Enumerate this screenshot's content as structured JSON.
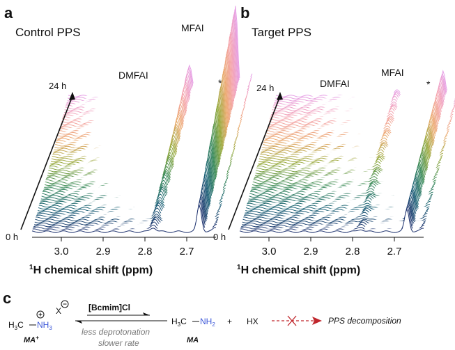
{
  "panel_a": {
    "letter": "a",
    "title": "Control PPS",
    "peak_dmfai": "DMFAI",
    "peak_mfai": "MFAI",
    "peak_star": "*",
    "time_top": "24 h",
    "time_bottom": "0 h"
  },
  "panel_b": {
    "letter": "b",
    "title": "Target PPS",
    "peak_dmfai": "DMFAI",
    "peak_mfai": "MFAI",
    "peak_star": "*",
    "time_top": "24 h",
    "time_bottom": "0 h"
  },
  "axis": {
    "title_sup": "1",
    "title_rest": "H chemical shift (ppm)"
  },
  "chart_data": [
    {
      "type": "line",
      "title": "Control PPS",
      "xlabel": "1H chemical shift (ppm)",
      "x_ticks": [
        "3.0",
        "2.9",
        "2.8",
        "2.7"
      ],
      "xlim": [
        3.07,
        2.63
      ],
      "stack_range_hours": [
        0,
        24
      ],
      "n_traces": 70,
      "peaks_ppm": {
        "DMFAI": 2.78,
        "MFAI": 2.67,
        "*": 2.63
      },
      "peak_intensity_trend": {
        "DMFAI": [
          0.05,
          0.35
        ],
        "MFAI": [
          0.3,
          1.0
        ],
        "*": [
          0.05,
          0.25
        ]
      }
    },
    {
      "type": "line",
      "title": "Target PPS",
      "xlabel": "1H chemical shift (ppm)",
      "x_ticks": [
        "3.0",
        "2.9",
        "2.8",
        "2.7"
      ],
      "xlim": [
        3.07,
        2.63
      ],
      "stack_range_hours": [
        0,
        24
      ],
      "n_traces": 70,
      "peaks_ppm": {
        "DMFAI": 2.78,
        "MFAI": 2.67,
        "*": 2.63
      },
      "peak_intensity_trend": {
        "DMFAI": [
          0.03,
          0.08
        ],
        "MFAI": [
          0.25,
          0.28
        ],
        "*": [
          0.04,
          0.1
        ]
      }
    }
  ],
  "scheme": {
    "letter": "c",
    "ma_plus_h3c": "H",
    "ma_plus_label": "MA",
    "ma_plus_charge": "+",
    "counterion": "X",
    "condition": "[Bcmim]Cl",
    "note_line1": "less deprotonation",
    "note_line2": "slower rate",
    "ma_label": "MA",
    "plus_sign": "+",
    "hx": "HX",
    "decomposition": "PPS decomposition",
    "arrow_color": "#c0262c",
    "amine_color": "#3b56d8"
  }
}
